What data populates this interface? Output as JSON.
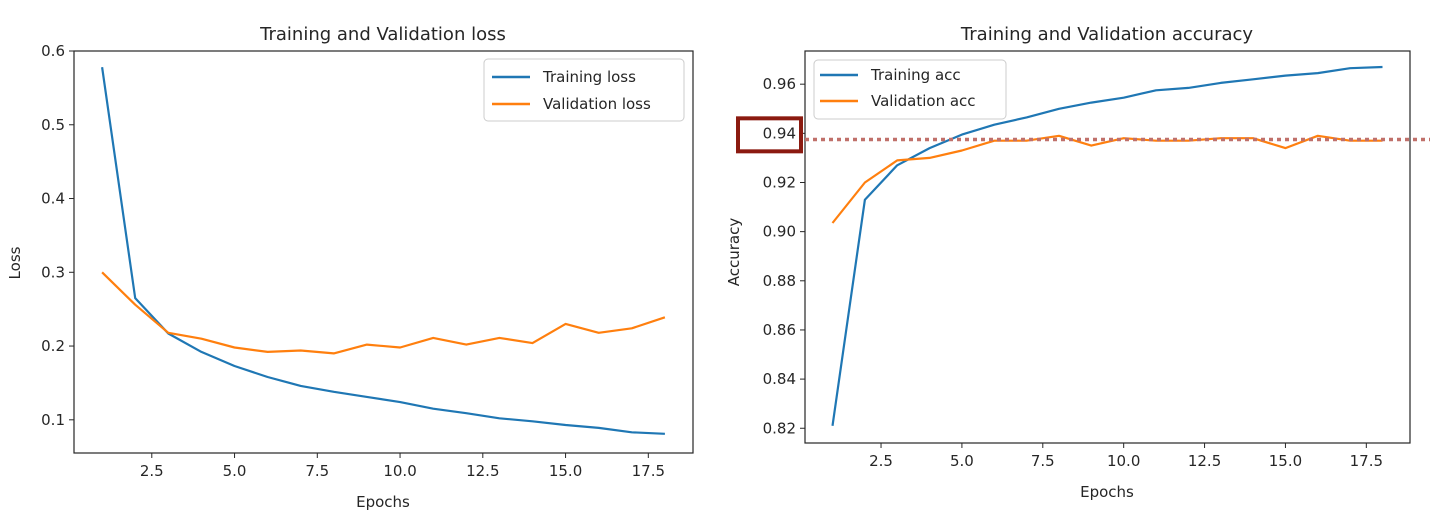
{
  "colors": {
    "training": "#1f77b4",
    "validation": "#ff7f0e",
    "annotation_box": "#8b1a10",
    "annotation_line": "#c0706a",
    "axis": "#262626"
  },
  "chart_data": [
    {
      "id": "loss",
      "type": "line",
      "title": "Training and Validation loss",
      "xlabel": "Epochs",
      "ylabel": "Loss",
      "xlim": [
        0.15,
        18.85
      ],
      "ylim": [
        0.055,
        0.6
      ],
      "xticks": [
        2.5,
        5.0,
        7.5,
        10.0,
        12.5,
        15.0,
        17.5
      ],
      "xtick_labels": [
        "2.5",
        "5.0",
        "7.5",
        "10.0",
        "12.5",
        "15.0",
        "17.5"
      ],
      "yticks": [
        0.1,
        0.2,
        0.3,
        0.4,
        0.5,
        0.6
      ],
      "ytick_labels": [
        "0.1",
        "0.2",
        "0.3",
        "0.4",
        "0.5",
        "0.6"
      ],
      "grid": false,
      "legend": "top-right",
      "x": [
        1,
        2,
        3,
        4,
        5,
        6,
        7,
        8,
        9,
        10,
        11,
        12,
        13,
        14,
        15,
        16,
        17,
        18
      ],
      "series": [
        {
          "name": "Training loss",
          "color_key": "training",
          "values": [
            0.578,
            0.265,
            0.217,
            0.192,
            0.173,
            0.158,
            0.146,
            0.138,
            0.131,
            0.124,
            0.115,
            0.109,
            0.102,
            0.098,
            0.093,
            0.089,
            0.083,
            0.081
          ]
        },
        {
          "name": "Validation loss",
          "color_key": "validation",
          "values": [
            0.3,
            0.256,
            0.218,
            0.21,
            0.198,
            0.192,
            0.194,
            0.19,
            0.202,
            0.198,
            0.211,
            0.202,
            0.211,
            0.204,
            0.23,
            0.218,
            0.224,
            0.239
          ]
        }
      ]
    },
    {
      "id": "accuracy",
      "type": "line",
      "title": "Training and Validation accuracy",
      "xlabel": "Epochs",
      "ylabel": "Accuracy",
      "xlim": [
        0.15,
        18.85
      ],
      "ylim": [
        0.814,
        0.9735
      ],
      "xticks": [
        2.5,
        5.0,
        7.5,
        10.0,
        12.5,
        15.0,
        17.5
      ],
      "xtick_labels": [
        "2.5",
        "5.0",
        "7.5",
        "10.0",
        "12.5",
        "15.0",
        "17.5"
      ],
      "yticks": [
        0.82,
        0.84,
        0.86,
        0.88,
        0.9,
        0.92,
        0.94,
        0.96
      ],
      "ytick_labels": [
        "0.82",
        "0.84",
        "0.86",
        "0.88",
        "0.90",
        "0.92",
        "0.94",
        "0.96"
      ],
      "grid": false,
      "legend": "top-left",
      "x": [
        1,
        2,
        3,
        4,
        5,
        6,
        7,
        8,
        9,
        10,
        11,
        12,
        13,
        14,
        15,
        16,
        17,
        18
      ],
      "series": [
        {
          "name": "Training acc",
          "color_key": "training",
          "values": [
            0.821,
            0.913,
            0.927,
            0.934,
            0.9395,
            0.9435,
            0.9465,
            0.95,
            0.9525,
            0.9545,
            0.9575,
            0.9585,
            0.9605,
            0.962,
            0.9635,
            0.9645,
            0.9665,
            0.967
          ]
        },
        {
          "name": "Validation acc",
          "color_key": "validation",
          "values": [
            0.9035,
            0.92,
            0.929,
            0.93,
            0.933,
            0.937,
            0.937,
            0.939,
            0.935,
            0.938,
            0.937,
            0.937,
            0.938,
            0.938,
            0.934,
            0.939,
            0.937,
            0.937
          ]
        }
      ],
      "annotations": [
        {
          "type": "hline",
          "style": "dotted",
          "y": 0.9375,
          "color_key": "annotation_line"
        },
        {
          "type": "highlight-box",
          "target_tick": "0.94",
          "color_key": "annotation_box"
        }
      ]
    }
  ]
}
